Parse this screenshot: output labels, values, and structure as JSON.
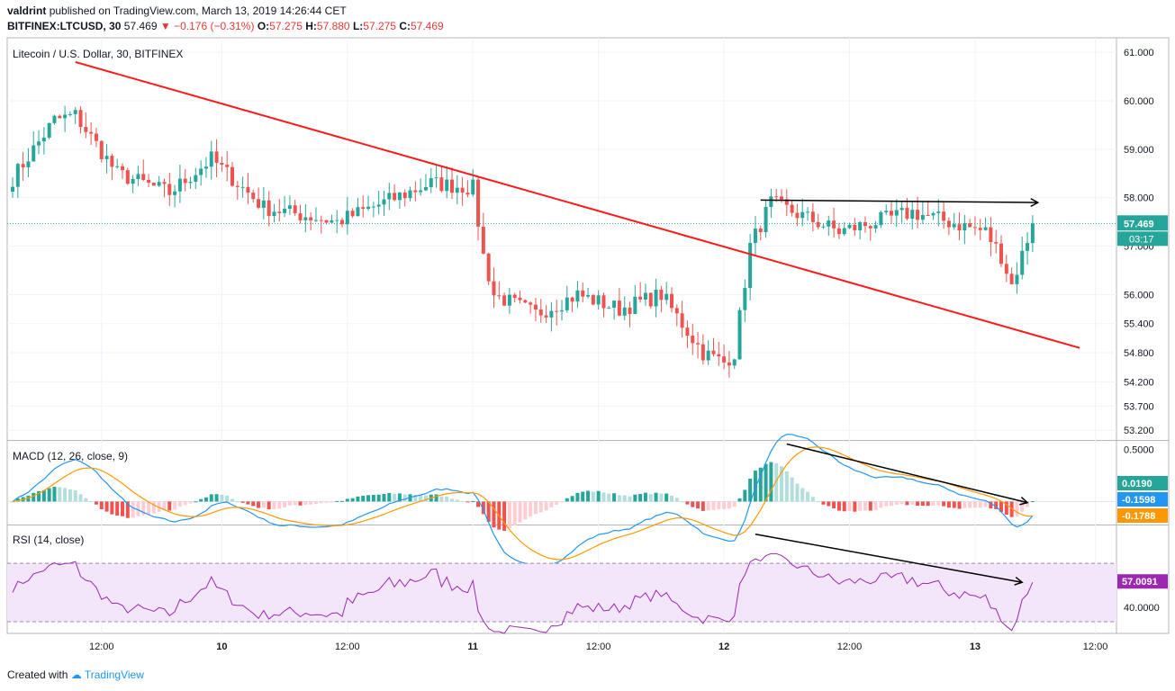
{
  "header": {
    "author": "valdrint",
    "published_text": "published on TradingView.com, March 13, 2019 14:26:44 CET",
    "symbol": "BITFINEX:LTCUSD, 30",
    "last": "57.469",
    "change": "−0.176 (−0.31%)",
    "o_label": "O:",
    "o": "57.275",
    "h_label": "H:",
    "h": "57.880",
    "l_label": "L:",
    "l": "57.275",
    "c_label": "C:",
    "c": "57.469"
  },
  "footer": {
    "created_with": "Created with",
    "brand": "TradingView"
  },
  "colors": {
    "up": "#26a69a",
    "down": "#ef5350",
    "trend": "#ff1a1a",
    "arrow": "#000000",
    "macd": "#2196f3",
    "signal": "#ff9800",
    "rsi": "#9c27b0",
    "rsi_band": "#f3e5fa",
    "price_tag": "#26a69a"
  },
  "chart_data": [
    {
      "type": "candlestick",
      "title": "Litecoin / U.S. Dollar, 30, BITFINEX",
      "ylim": [
        53.0,
        61.3
      ],
      "y_ticks": [
        "61.000",
        "60.000",
        "59.000",
        "58.000",
        "57.000",
        "56.000",
        "55.400",
        "54.800",
        "54.200",
        "53.700",
        "53.200"
      ],
      "x_ticks": [
        "12:00",
        "10",
        "12:00",
        "11",
        "12:00",
        "12",
        "12:00",
        "13",
        "12:00"
      ],
      "last_price": "57.469",
      "countdown": "03:17",
      "anchor_points": [
        {
          "bar": 0,
          "v": 58.4
        },
        {
          "bar": 8,
          "v": 59.6
        },
        {
          "bar": 12,
          "v": 59.7
        },
        {
          "bar": 20,
          "v": 58.5
        },
        {
          "bar": 30,
          "v": 58.1
        },
        {
          "bar": 38,
          "v": 58.8
        },
        {
          "bar": 48,
          "v": 57.8
        },
        {
          "bar": 62,
          "v": 57.5
        },
        {
          "bar": 80,
          "v": 58.3
        },
        {
          "bar": 88,
          "v": 58.2
        },
        {
          "bar": 90,
          "v": 56.8
        },
        {
          "bar": 92,
          "v": 56.0
        },
        {
          "bar": 100,
          "v": 55.6
        },
        {
          "bar": 108,
          "v": 56.0
        },
        {
          "bar": 116,
          "v": 55.7
        },
        {
          "bar": 124,
          "v": 56.0
        },
        {
          "bar": 132,
          "v": 54.8
        },
        {
          "bar": 136,
          "v": 54.6
        },
        {
          "bar": 138,
          "v": 54.8
        },
        {
          "bar": 141,
          "v": 57.0
        },
        {
          "bar": 145,
          "v": 57.9
        },
        {
          "bar": 158,
          "v": 57.3
        },
        {
          "bar": 172,
          "v": 57.7
        },
        {
          "bar": 186,
          "v": 57.3
        },
        {
          "bar": 189,
          "v": 56.8
        },
        {
          "bar": 191,
          "v": 56.2
        },
        {
          "bar": 195,
          "v": 57.45
        }
      ],
      "trendline": {
        "from": {
          "bar": 12,
          "v": 60.8
        },
        "to": {
          "bar": 204,
          "v": 54.9
        }
      },
      "resistance_arrow": {
        "from": {
          "bar": 143,
          "v": 57.95
        },
        "to": {
          "bar": 196,
          "v": 57.9
        }
      }
    },
    {
      "type": "line",
      "title": "MACD (12, 26, close, 9)",
      "ylim": [
        -0.22,
        0.58
      ],
      "y_ticks": [
        "0.5000"
      ],
      "values": {
        "histogram": "0.0190",
        "macd": "-0.1598",
        "signal": "-0.1788"
      },
      "divergence_arrow": {
        "from": {
          "bar": 148,
          "v": 0.55
        },
        "to": {
          "bar": 194,
          "v": -0.01
        }
      }
    },
    {
      "type": "line",
      "title": "RSI (14, close)",
      "ylim": [
        22,
        96
      ],
      "band": [
        30,
        70
      ],
      "y_ticks": [
        "40.0000"
      ],
      "value": "57.0091",
      "divergence_arrow": {
        "from": {
          "bar": 142,
          "v": 90
        },
        "to": {
          "bar": 193,
          "v": 57
        }
      }
    }
  ]
}
